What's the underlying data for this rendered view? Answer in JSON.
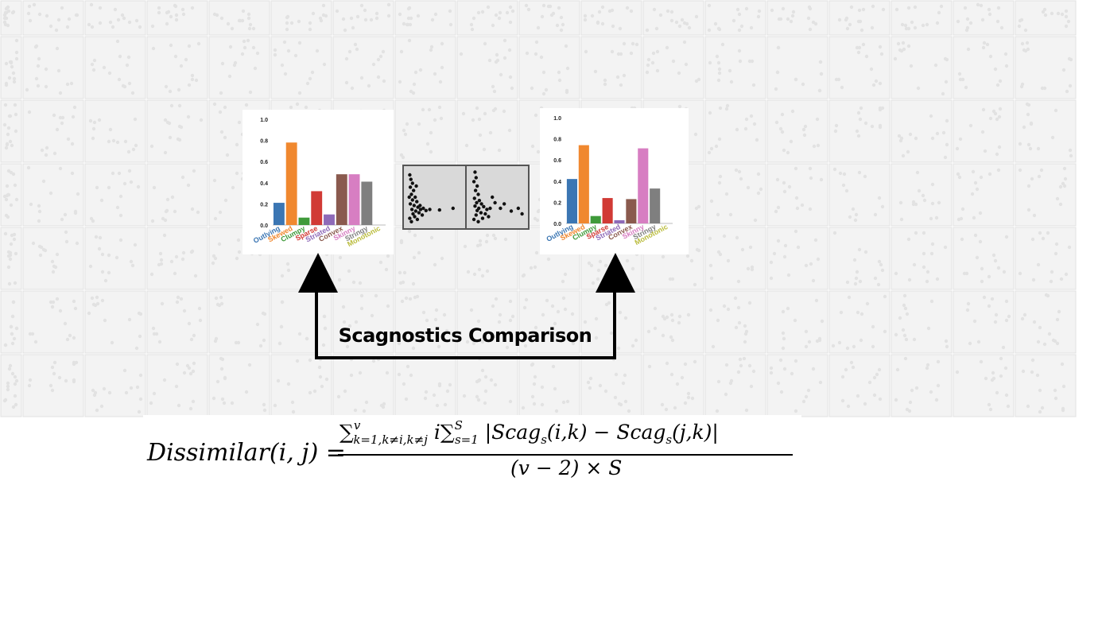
{
  "background": {
    "description_icon": "scatterplot-matrix-background",
    "cell_color": "#f3f3f3",
    "grid_color": "#e0e0e0"
  },
  "charts": [
    {
      "id": "left",
      "chart_data": {
        "type": "bar",
        "categories": [
          "Outlying",
          "Skewed",
          "Clumpy",
          "Sparse",
          "Striated",
          "Convex",
          "Skinny",
          "Stringy",
          "Monotonic"
        ],
        "values": [
          0.21,
          0.78,
          0.07,
          0.32,
          0.1,
          0.48,
          0.48,
          0.41,
          0.0
        ],
        "ylim": [
          0,
          1.0
        ],
        "yticks": [
          "0.0",
          "0.2",
          "0.4",
          "0.6",
          "0.8",
          "1.0"
        ],
        "colors": [
          "#3b76b3",
          "#f0882f",
          "#3f9a3a",
          "#d13a35",
          "#8e6ab8",
          "#8a5a4e",
          "#d77ec2",
          "#7f7f7f",
          "#b9bb3a"
        ]
      }
    },
    {
      "id": "right",
      "chart_data": {
        "type": "bar",
        "categories": [
          "Outlying",
          "Skewed",
          "Clumpy",
          "Sparse",
          "Striated",
          "Convex",
          "Skinny",
          "Stringy",
          "Monotonic"
        ],
        "values": [
          0.42,
          0.74,
          0.07,
          0.24,
          0.03,
          0.23,
          0.71,
          0.33,
          0.0
        ],
        "ylim": [
          0,
          1.0
        ],
        "yticks": [
          "0.0",
          "0.2",
          "0.4",
          "0.6",
          "0.8",
          "1.0"
        ],
        "colors": [
          "#3b76b3",
          "#f0882f",
          "#3f9a3a",
          "#d13a35",
          "#8e6ab8",
          "#8a5a4e",
          "#d77ec2",
          "#7f7f7f",
          "#b9bb3a"
        ]
      }
    }
  ],
  "scatter_pair": {
    "left_points": [
      [
        0.05,
        0.9
      ],
      [
        0.07,
        0.82
      ],
      [
        0.1,
        0.75
      ],
      [
        0.06,
        0.68
      ],
      [
        0.12,
        0.62
      ],
      [
        0.08,
        0.55
      ],
      [
        0.15,
        0.5
      ],
      [
        0.1,
        0.45
      ],
      [
        0.18,
        0.42
      ],
      [
        0.06,
        0.38
      ],
      [
        0.13,
        0.35
      ],
      [
        0.2,
        0.32
      ],
      [
        0.09,
        0.28
      ],
      [
        0.16,
        0.25
      ],
      [
        0.25,
        0.28
      ],
      [
        0.3,
        0.3
      ],
      [
        0.11,
        0.2
      ],
      [
        0.22,
        0.22
      ],
      [
        0.35,
        0.26
      ],
      [
        0.14,
        0.15
      ],
      [
        0.28,
        0.18
      ],
      [
        0.42,
        0.28
      ],
      [
        0.6,
        0.27
      ],
      [
        0.85,
        0.3
      ],
      [
        0.05,
        0.12
      ],
      [
        0.19,
        0.1
      ],
      [
        0.08,
        0.06
      ],
      [
        0.24,
        0.35
      ],
      [
        0.04,
        0.5
      ],
      [
        0.17,
        0.7
      ]
    ],
    "right_points": [
      [
        0.08,
        0.95
      ],
      [
        0.1,
        0.85
      ],
      [
        0.06,
        0.78
      ],
      [
        0.12,
        0.7
      ],
      [
        0.09,
        0.62
      ],
      [
        0.14,
        0.55
      ],
      [
        0.07,
        0.48
      ],
      [
        0.16,
        0.44
      ],
      [
        0.11,
        0.4
      ],
      [
        0.2,
        0.38
      ],
      [
        0.08,
        0.34
      ],
      [
        0.15,
        0.3
      ],
      [
        0.24,
        0.33
      ],
      [
        0.12,
        0.26
      ],
      [
        0.3,
        0.28
      ],
      [
        0.19,
        0.22
      ],
      [
        0.36,
        0.3
      ],
      [
        0.1,
        0.18
      ],
      [
        0.27,
        0.2
      ],
      [
        0.45,
        0.4
      ],
      [
        0.55,
        0.3
      ],
      [
        0.62,
        0.38
      ],
      [
        0.75,
        0.25
      ],
      [
        0.88,
        0.3
      ],
      [
        0.95,
        0.2
      ],
      [
        0.06,
        0.1
      ],
      [
        0.22,
        0.12
      ],
      [
        0.14,
        0.06
      ],
      [
        0.33,
        0.15
      ],
      [
        0.4,
        0.5
      ]
    ]
  },
  "label": "Scagnostics Comparison",
  "formula": {
    "lhs": "Dissimilar(i, j) =",
    "numerator_sum1": "∑",
    "numerator_sup1": "v",
    "numerator_sub1": "k=1,k≠i,k≠j",
    "numerator_i": "i",
    "numerator_sum2": "∑",
    "numerator_sup2": "S",
    "numerator_sub2": "s=1",
    "numerator_body": "|Scag",
    "numerator_s1": "s",
    "numerator_arg1": "(i,k) − Scag",
    "numerator_s2": "s",
    "numerator_arg2": "(j,k)|",
    "denominator": "(v − 2) × S"
  }
}
